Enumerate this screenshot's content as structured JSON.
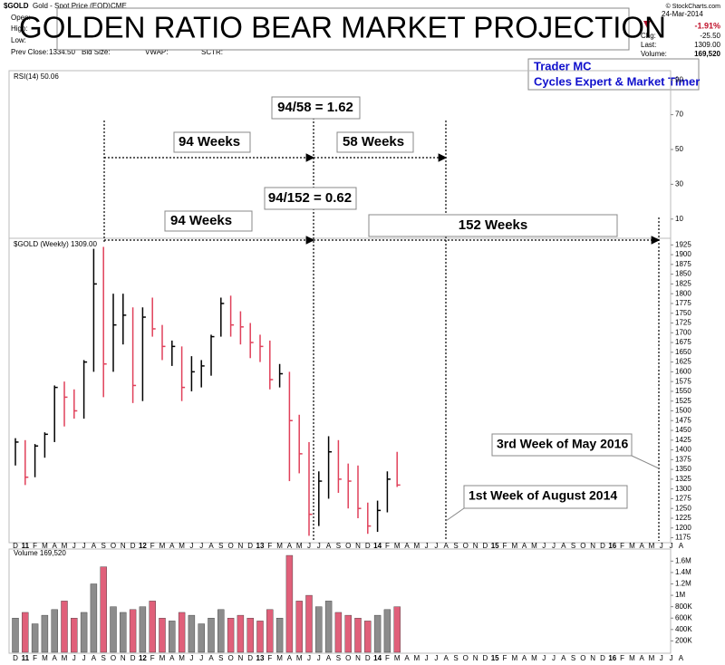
{
  "title": "GOLDEN RATIO BEAR MARKET PROJECTION",
  "author": [
    "Trader MC",
    "Cycles Expert & Market Timer"
  ],
  "header": {
    "symbol": "$GOLD",
    "description": "Gold - Spot Price (EOD)",
    "exchange": "CME",
    "left_labels": [
      "Open:",
      "High:",
      "Low:",
      "Prev Close:"
    ],
    "prev_close": "1334.50",
    "mid_labels": [
      "Bid Size:",
      "VWAP:",
      "SCTR:"
    ],
    "date": "24-Mar-2014",
    "change_pct": "-1.91%",
    "chg_label": "Chg:",
    "chg": "-25.50",
    "last_label": "Last:",
    "last": "1309.00",
    "volume_label": "Volume:",
    "volume": "169,520",
    "copyright": "© StockCharts.com"
  },
  "annotations": [
    "94/58 = 1.62",
    "94 Weeks",
    "58 Weeks",
    "94/152 = 0.62",
    "94 Weeks",
    "152 Weeks",
    "3rd Week of May 2016",
    "1st Week of August 2014"
  ],
  "chart_data": [
    {
      "type": "line",
      "title": "RSI(14) 50.06",
      "ylim": [
        0,
        100
      ],
      "yticks": [
        10,
        30,
        50,
        70,
        90
      ],
      "grid": false
    },
    {
      "type": "ohlc",
      "title": "$GOLD (Weekly) 1309.00",
      "up_color": "#000000",
      "down_color": "#e0405a",
      "categories": [
        "D",
        "11",
        "F",
        "M",
        "A",
        "M",
        "J",
        "J",
        "A",
        "S",
        "O",
        "N",
        "D",
        "12",
        "F",
        "M",
        "A",
        "M",
        "J",
        "J",
        "A",
        "S",
        "O",
        "N",
        "D",
        "13",
        "F",
        "M",
        "A",
        "M",
        "J",
        "J",
        "A",
        "S",
        "O",
        "N",
        "D",
        "14",
        "F",
        "M",
        "A",
        "M",
        "J",
        "J",
        "A",
        "S",
        "O",
        "N",
        "D",
        "15",
        "F",
        "M",
        "A",
        "M",
        "J",
        "J",
        "A",
        "S",
        "O",
        "N",
        "D",
        "16",
        "F",
        "M",
        "A",
        "M",
        "J",
        "J",
        "A"
      ],
      "high": [
        1430,
        1425,
        1415,
        1445,
        1565,
        1575,
        1555,
        1630,
        1915,
        1920,
        1800,
        1800,
        1765,
        1765,
        1790,
        1720,
        1680,
        1665,
        1640,
        1630,
        1695,
        1790,
        1795,
        1755,
        1725,
        1695,
        1680,
        1620,
        1600,
        1490,
        1420,
        1345,
        1435,
        1425,
        1365,
        1360,
        1265,
        1270,
        1345,
        1395,
        null,
        null,
        null,
        null,
        null,
        null,
        null,
        null,
        null,
        null,
        null,
        null,
        null,
        null,
        null,
        null,
        null,
        null,
        null,
        null,
        null,
        null,
        null,
        null,
        null,
        null,
        null,
        null,
        null
      ],
      "low": [
        1360,
        1310,
        1330,
        1380,
        1420,
        1460,
        1480,
        1480,
        1600,
        1535,
        1600,
        1670,
        1520,
        1525,
        1690,
        1630,
        1615,
        1525,
        1550,
        1560,
        1590,
        1690,
        1690,
        1670,
        1635,
        1625,
        1555,
        1560,
        1320,
        1340,
        1180,
        1205,
        1275,
        1290,
        1250,
        1225,
        1185,
        1190,
        1240,
        1305,
        null,
        null,
        null,
        null,
        null,
        null,
        null,
        null,
        null,
        null,
        null,
        null,
        null,
        null,
        null,
        null,
        null,
        null,
        null,
        null,
        null,
        null,
        null,
        null,
        null,
        null,
        null,
        null,
        null
      ],
      "close": [
        1420,
        1330,
        1410,
        1440,
        1560,
        1535,
        1500,
        1625,
        1825,
        1620,
        1720,
        1745,
        1565,
        1740,
        1710,
        1665,
        1665,
        1560,
        1600,
        1615,
        1690,
        1775,
        1720,
        1715,
        1675,
        1665,
        1580,
        1595,
        1475,
        1390,
        1235,
        1320,
        1395,
        1325,
        1320,
        1250,
        1205,
        1245,
        1325,
        1310,
        null,
        null,
        null,
        null,
        null,
        null,
        null,
        null,
        null,
        null,
        null,
        null,
        null,
        null,
        null,
        null,
        null,
        null,
        null,
        null,
        null,
        null,
        null,
        null,
        null,
        null,
        null,
        null,
        null
      ],
      "ylim": [
        1160,
        1935
      ],
      "yticks": [
        1175,
        1200,
        1225,
        1250,
        1275,
        1300,
        1325,
        1350,
        1375,
        1400,
        1425,
        1450,
        1475,
        1500,
        1525,
        1550,
        1575,
        1600,
        1625,
        1650,
        1675,
        1700,
        1725,
        1750,
        1775,
        1800,
        1825,
        1850,
        1875,
        1900,
        1925
      ],
      "grid": false
    },
    {
      "type": "bar",
      "title": "Volume 169,520",
      "color": "#8c8c8c",
      "down_color": "#e0607a",
      "categories": [
        "D",
        "11",
        "F",
        "M",
        "A",
        "M",
        "J",
        "J",
        "A",
        "S",
        "O",
        "N",
        "D",
        "12",
        "F",
        "M",
        "A",
        "M",
        "J",
        "J",
        "A",
        "S",
        "O",
        "N",
        "D",
        "13",
        "F",
        "M",
        "A",
        "M",
        "J",
        "J",
        "A",
        "S",
        "O",
        "N",
        "D",
        "14",
        "F",
        "M",
        "A",
        "M",
        "J",
        "J",
        "A",
        "S",
        "O",
        "N",
        "D",
        "15",
        "F",
        "M",
        "A",
        "M",
        "J",
        "J",
        "A",
        "S",
        "O",
        "N",
        "D",
        "16",
        "F",
        "M",
        "A",
        "M",
        "J",
        "J",
        "A"
      ],
      "values": [
        600000,
        700000,
        500000,
        650000,
        750000,
        900000,
        600000,
        700000,
        1200000,
        1500000,
        800000,
        700000,
        750000,
        800000,
        900000,
        600000,
        550000,
        700000,
        650000,
        500000,
        600000,
        750000,
        600000,
        650000,
        600000,
        550000,
        750000,
        600000,
        1700000,
        900000,
        1000000,
        800000,
        900000,
        700000,
        650000,
        600000,
        550000,
        650000,
        750000,
        800000,
        null,
        null,
        null,
        null,
        null,
        null,
        null,
        null,
        null,
        null,
        null,
        null,
        null,
        null,
        null,
        null,
        null,
        null,
        null,
        null,
        null,
        null,
        null,
        null,
        null,
        null,
        null,
        null,
        null
      ],
      "ylim": [
        0,
        1780000
      ],
      "yticks": [
        {
          "value": 200000,
          "label": "200K"
        },
        {
          "value": 400000,
          "label": "400K"
        },
        {
          "value": 600000,
          "label": "600K"
        },
        {
          "value": 800000,
          "label": "800K"
        },
        {
          "value": 1000000,
          "label": "1M"
        },
        {
          "value": 1200000,
          "label": "1.2M"
        },
        {
          "value": 1400000,
          "label": "1.4M"
        },
        {
          "value": 1600000,
          "label": "1.6M"
        }
      ],
      "grid": false
    }
  ]
}
